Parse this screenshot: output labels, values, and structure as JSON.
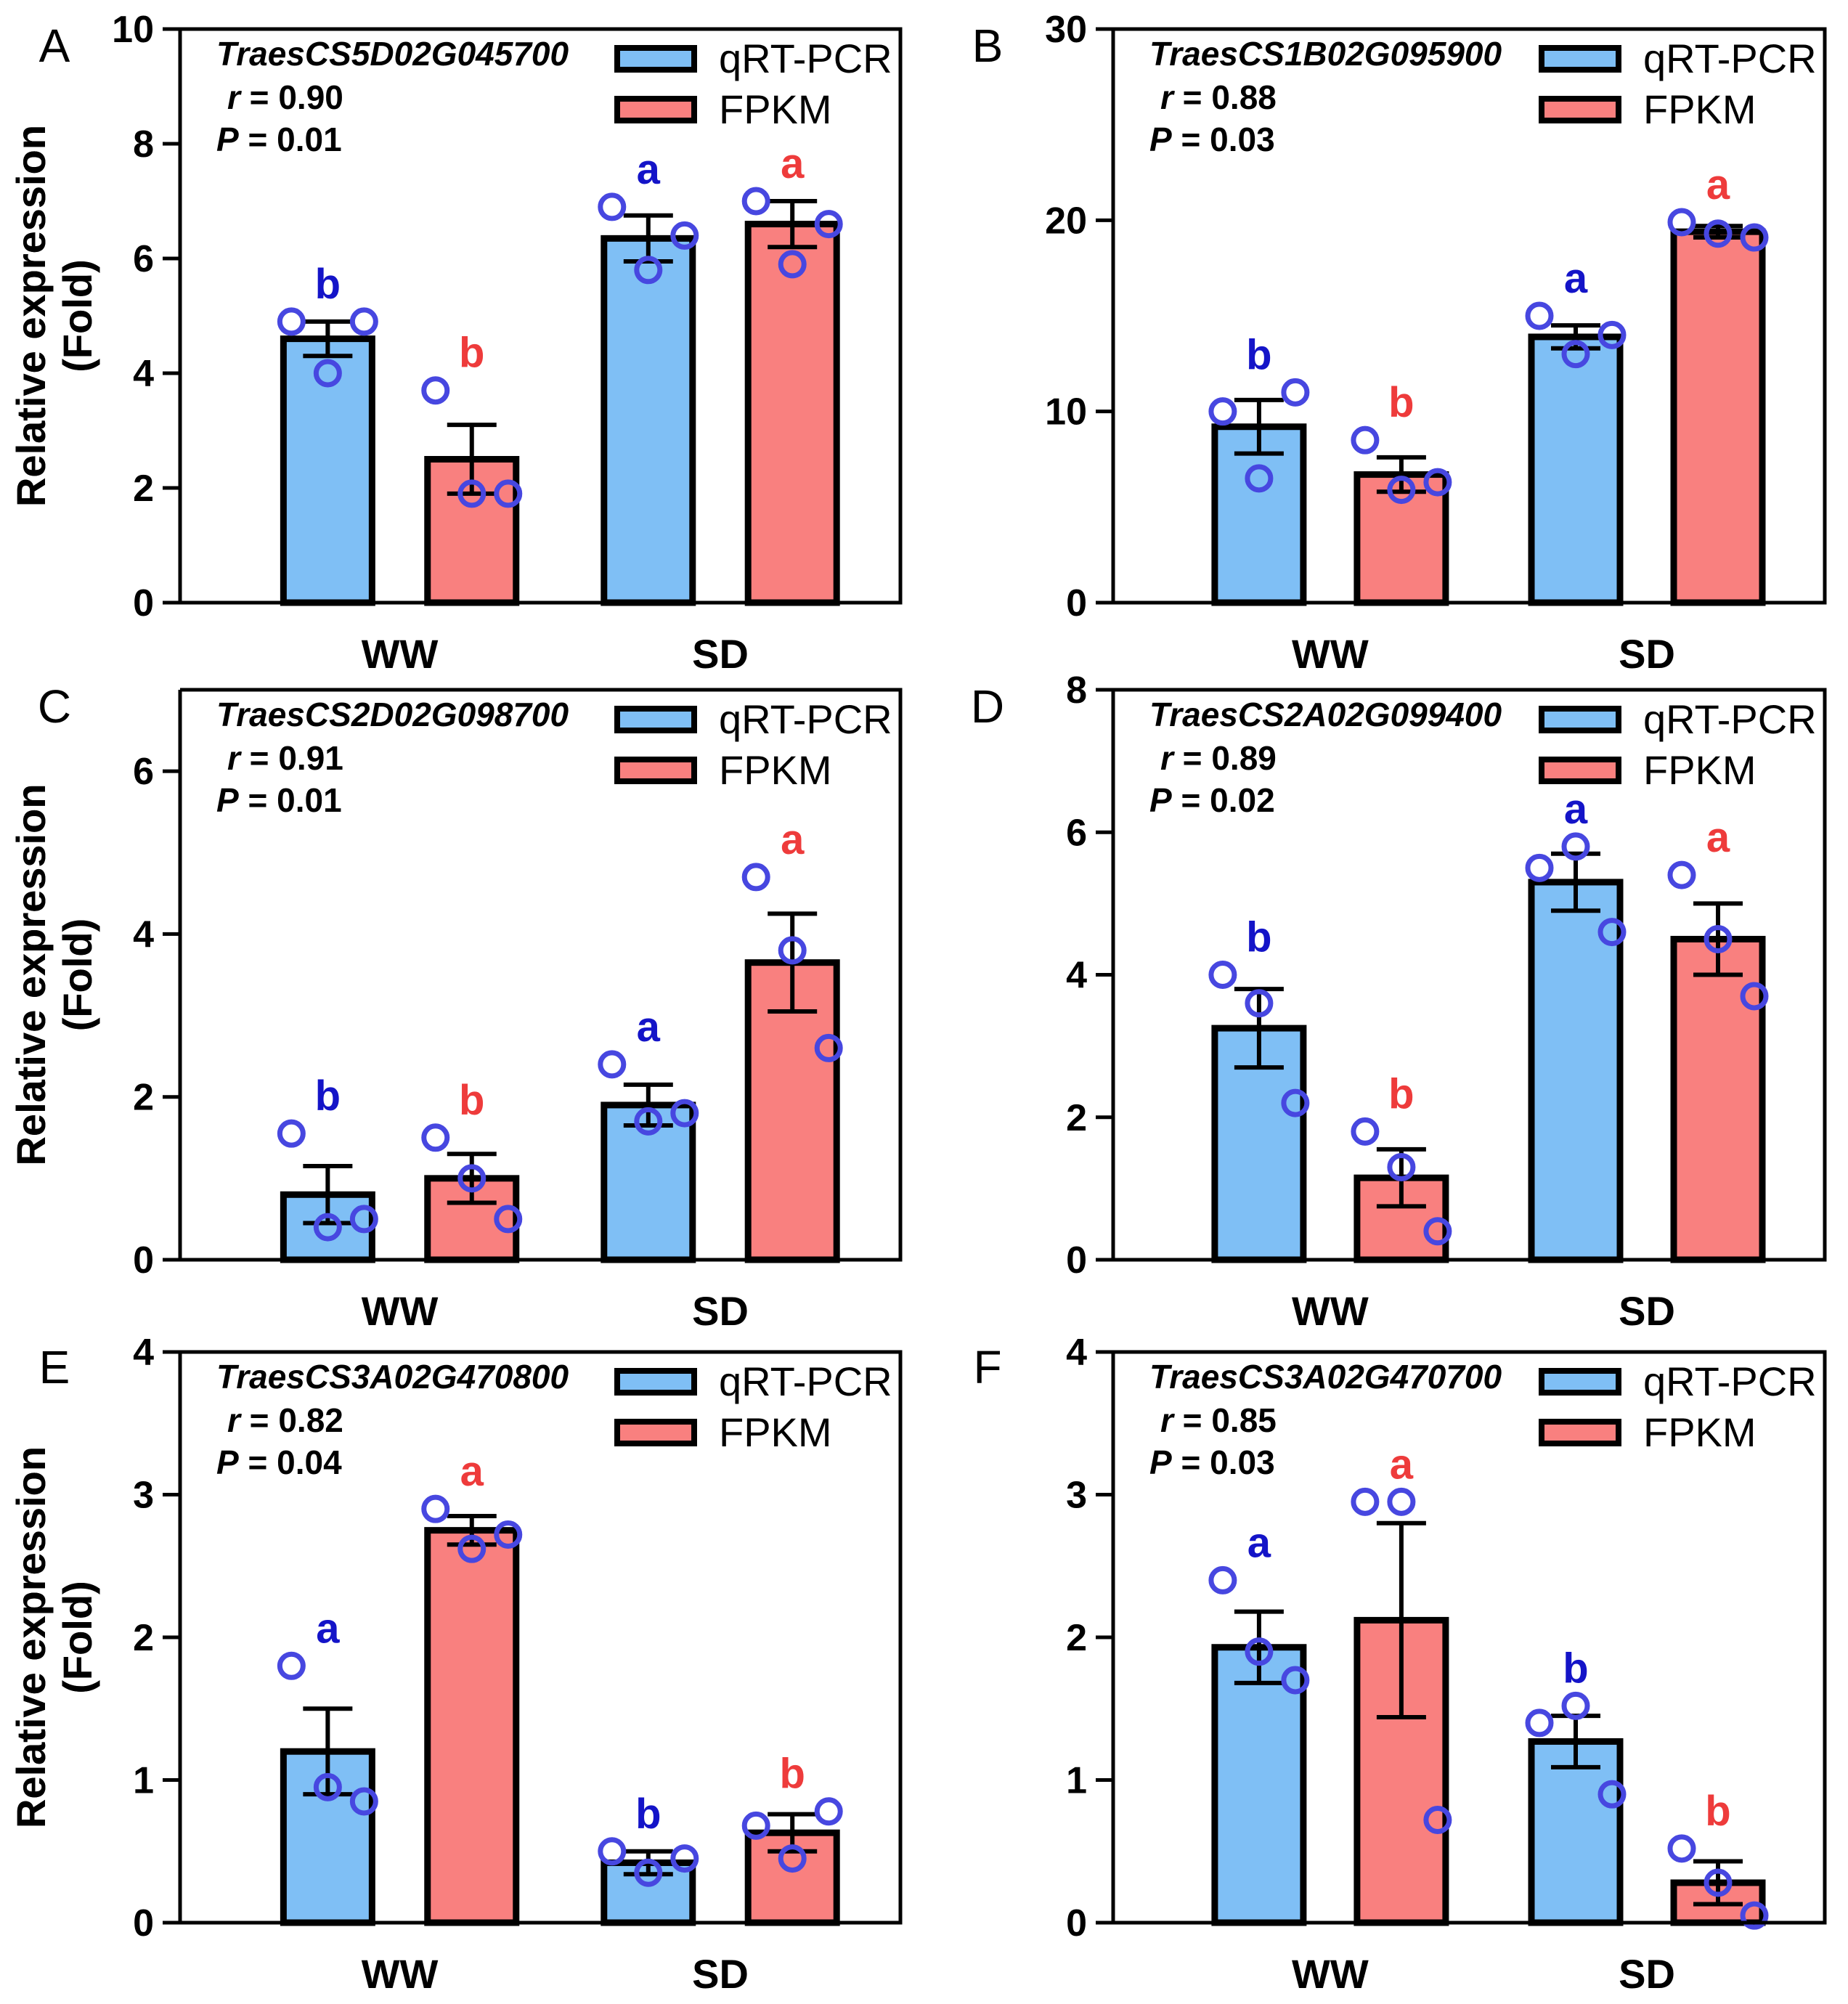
{
  "figure": {
    "categories": [
      "WW",
      "SD"
    ],
    "y_label_line1": "Relative expression",
    "y_label_line2": "(Fold)",
    "legend": [
      "qRT-PCR",
      "FPKM"
    ],
    "stat_labels": {
      "r": "r",
      "p": "P"
    },
    "colors": {
      "qrt": "#7fbff5",
      "fpkm": "#f9807f",
      "points": "#4747e0",
      "letter_qrt": "#1414c8",
      "letter_fpkm": "#ee3b3b",
      "axis": "#000000"
    }
  },
  "chart_data": [
    {
      "panel": "A",
      "type": "bar",
      "gene": "TraesCS5D02G045700",
      "r": "0.90",
      "p": "0.01",
      "ylim": [
        0,
        10
      ],
      "yticks": [
        0,
        2,
        4,
        6,
        8,
        10
      ],
      "categories": [
        "WW",
        "SD"
      ],
      "series": [
        {
          "name": "qRT-PCR",
          "values": [
            4.6,
            6.35
          ],
          "errors": [
            0.3,
            0.4
          ],
          "letters": [
            "b",
            "a"
          ],
          "points": [
            [
              4.9,
              4.0,
              4.9
            ],
            [
              6.9,
              5.8,
              6.4
            ]
          ]
        },
        {
          "name": "FPKM",
          "values": [
            2.5,
            6.6
          ],
          "errors": [
            0.6,
            0.4
          ],
          "letters": [
            "b",
            "a"
          ],
          "points": [
            [
              3.7,
              1.9,
              1.9
            ],
            [
              7.0,
              5.9,
              6.6
            ]
          ]
        }
      ]
    },
    {
      "panel": "B",
      "type": "bar",
      "gene": "TraesCS1B02G095900",
      "r": "0.88",
      "p": "0.03",
      "ylim": [
        0,
        30
      ],
      "yticks": [
        0,
        10,
        20,
        30
      ],
      "categories": [
        "WW",
        "SD"
      ],
      "series": [
        {
          "name": "qRT-PCR",
          "values": [
            9.2,
            13.9
          ],
          "errors": [
            1.4,
            0.6
          ],
          "letters": [
            "b",
            "a"
          ],
          "points": [
            [
              10.0,
              6.5,
              11.0
            ],
            [
              15.0,
              13.0,
              14.0
            ]
          ]
        },
        {
          "name": "FPKM",
          "values": [
            6.7,
            19.4
          ],
          "errors": [
            0.9,
            0.3
          ],
          "letters": [
            "b",
            "a"
          ],
          "points": [
            [
              8.5,
              5.9,
              6.3
            ],
            [
              19.9,
              19.3,
              19.1
            ]
          ]
        }
      ]
    },
    {
      "panel": "C",
      "type": "bar",
      "gene": "TraesCS2D02G098700",
      "r": "0.91",
      "p": "0.01",
      "ylim": [
        0,
        7
      ],
      "yticks": [
        0,
        2,
        4,
        6
      ],
      "categories": [
        "WW",
        "SD"
      ],
      "series": [
        {
          "name": "qRT-PCR",
          "values": [
            0.8,
            1.9
          ],
          "errors": [
            0.35,
            0.25
          ],
          "letters": [
            "b",
            "a"
          ],
          "points": [
            [
              1.55,
              0.4,
              0.5
            ],
            [
              2.4,
              1.7,
              1.8
            ]
          ]
        },
        {
          "name": "FPKM",
          "values": [
            1.0,
            3.65
          ],
          "errors": [
            0.3,
            0.6
          ],
          "letters": [
            "b",
            "a"
          ],
          "points": [
            [
              1.5,
              1.0,
              0.5
            ],
            [
              4.7,
              3.8,
              2.6
            ]
          ]
        }
      ]
    },
    {
      "panel": "D",
      "type": "bar",
      "gene": "TraesCS2A02G099400",
      "r": "0.89",
      "p": "0.02",
      "ylim": [
        0,
        8
      ],
      "yticks": [
        0,
        2,
        4,
        6,
        8
      ],
      "categories": [
        "WW",
        "SD"
      ],
      "series": [
        {
          "name": "qRT-PCR",
          "values": [
            3.25,
            5.3
          ],
          "errors": [
            0.55,
            0.4
          ],
          "letters": [
            "b",
            "a"
          ],
          "points": [
            [
              4.0,
              3.6,
              2.2
            ],
            [
              5.5,
              5.8,
              4.6
            ]
          ]
        },
        {
          "name": "FPKM",
          "values": [
            1.15,
            4.5
          ],
          "errors": [
            0.4,
            0.5
          ],
          "letters": [
            "b",
            "a"
          ],
          "points": [
            [
              1.8,
              1.3,
              0.4
            ],
            [
              5.4,
              4.5,
              3.7
            ]
          ]
        }
      ]
    },
    {
      "panel": "E",
      "type": "bar",
      "gene": "TraesCS3A02G470800",
      "r": "0.82",
      "p": "0.04",
      "ylim": [
        0,
        4
      ],
      "yticks": [
        0,
        1,
        2,
        3,
        4
      ],
      "categories": [
        "WW",
        "SD"
      ],
      "series": [
        {
          "name": "qRT-PCR",
          "values": [
            1.2,
            0.42
          ],
          "errors": [
            0.3,
            0.08
          ],
          "letters": [
            "a",
            "b"
          ],
          "points": [
            [
              1.8,
              0.95,
              0.85
            ],
            [
              0.5,
              0.35,
              0.45
            ]
          ]
        },
        {
          "name": "FPKM",
          "values": [
            2.75,
            0.63
          ],
          "errors": [
            0.1,
            0.13
          ],
          "letters": [
            "a",
            "b"
          ],
          "points": [
            [
              2.9,
              2.62,
              2.72
            ],
            [
              0.68,
              0.45,
              0.78
            ]
          ]
        }
      ]
    },
    {
      "panel": "F",
      "type": "bar",
      "gene": "TraesCS3A02G470700",
      "r": "0.85",
      "p": "0.03",
      "ylim": [
        0,
        4
      ],
      "yticks": [
        0,
        1,
        2,
        3,
        4
      ],
      "categories": [
        "WW",
        "SD"
      ],
      "series": [
        {
          "name": "qRT-PCR",
          "values": [
            1.93,
            1.27
          ],
          "errors": [
            0.25,
            0.18
          ],
          "letters": [
            "a",
            "b"
          ],
          "points": [
            [
              2.4,
              1.9,
              1.7
            ],
            [
              1.4,
              1.52,
              0.9
            ]
          ]
        },
        {
          "name": "FPKM",
          "values": [
            2.12,
            0.28
          ],
          "errors": [
            0.68,
            0.15
          ],
          "letters": [
            "a",
            "b"
          ],
          "points": [
            [
              2.95,
              2.95,
              0.72
            ],
            [
              0.52,
              0.28,
              0.05
            ]
          ]
        }
      ]
    }
  ]
}
